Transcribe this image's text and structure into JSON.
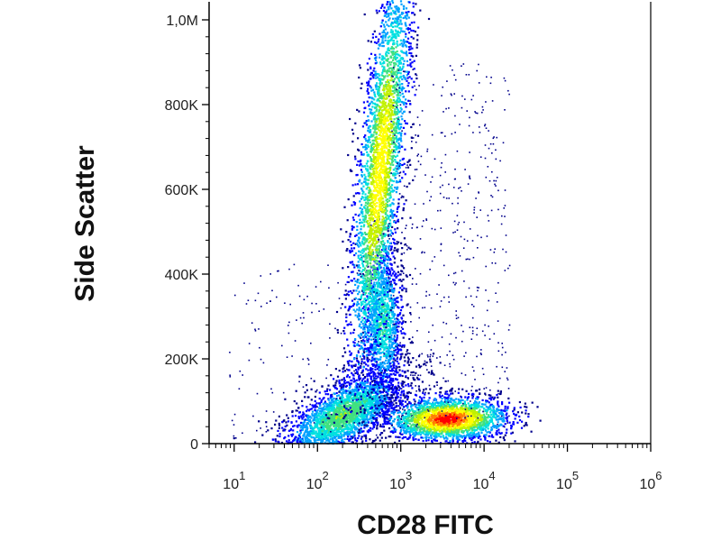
{
  "chart_data": {
    "type": "scatter",
    "subtype": "flow-cytometry density plot (pseudocolor)",
    "title": "",
    "xlabel": "CD28 FITC",
    "ylabel": "Side Scatter",
    "x_scale": "log",
    "xlim": [
      5,
      1000000
    ],
    "ylim": [
      0,
      1000000
    ],
    "x_ticks": [
      {
        "value": 10,
        "base": "10",
        "exp": "1"
      },
      {
        "value": 100,
        "base": "10",
        "exp": "2"
      },
      {
        "value": 1000,
        "base": "10",
        "exp": "3"
      },
      {
        "value": 10000,
        "base": "10",
        "exp": "4"
      },
      {
        "value": 100000,
        "base": "10",
        "exp": "5"
      },
      {
        "value": 1000000,
        "base": "10",
        "exp": "6"
      }
    ],
    "y_ticks": [
      {
        "value": 0,
        "label": "0"
      },
      {
        "value": 200000,
        "label": "200K"
      },
      {
        "value": 400000,
        "label": "400K"
      },
      {
        "value": 600000,
        "label": "600K"
      },
      {
        "value": 800000,
        "label": "800K"
      },
      {
        "value": 1000000,
        "label": "1,0M"
      }
    ],
    "populations": [
      {
        "x_center": 200,
        "y_center": 70000,
        "color_peak": "#1fc8a0"
      },
      {
        "x_center": 550,
        "y_center": 650000,
        "color_peak": "#e05a1a"
      },
      {
        "x_center": 600,
        "y_center": 280000,
        "color_peak": "#2ec4d0"
      },
      {
        "x_center": 3500,
        "y_center": 60000,
        "color_peak": "#d01010"
      }
    ],
    "colormap": [
      "#00008b",
      "#0000ff",
      "#00a0ff",
      "#00e0e0",
      "#40e080",
      "#c0f000",
      "#ffff00",
      "#ff8000",
      "#ff0000"
    ],
    "grid": false,
    "legend": "none"
  }
}
